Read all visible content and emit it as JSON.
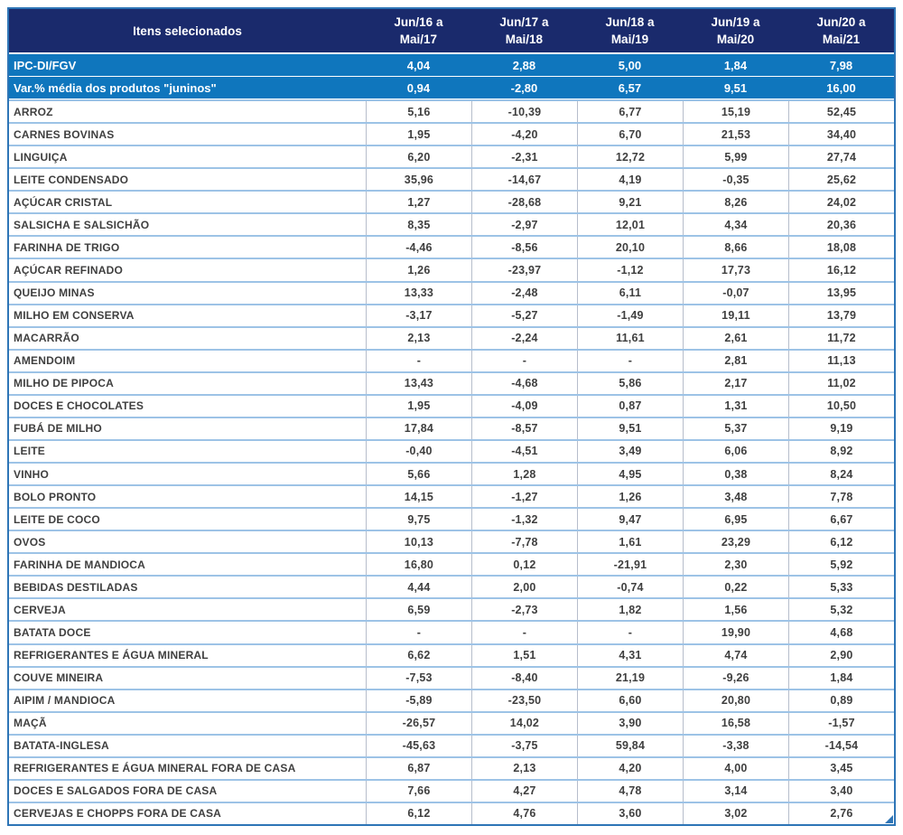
{
  "colors": {
    "header_bg": "#1A2A6C",
    "summary_bg": "#0F76BD",
    "header_text": "#FFFFFF",
    "data_text": "#3F3F3F",
    "row_separator": "#9DC3E6",
    "col_separator": "#B6BDCB",
    "outer_border": "#2E75B6"
  },
  "table": {
    "header": {
      "item_col": "Itens selecionados",
      "period_cols": [
        {
          "line1": "Jun/16 a",
          "line2": "Mai/17"
        },
        {
          "line1": "Jun/17 a",
          "line2": "Mai/18"
        },
        {
          "line1": "Jun/18 a",
          "line2": "Mai/19"
        },
        {
          "line1": "Jun/19 a",
          "line2": "Mai/20"
        },
        {
          "line1": "Jun/20 a",
          "line2": "Mai/21"
        }
      ]
    },
    "summary_rows": [
      {
        "label": "IPC-DI/FGV",
        "values": [
          "4,04",
          "2,88",
          "5,00",
          "1,84",
          "7,98"
        ]
      },
      {
        "label": "Var.% média dos produtos \"juninos\"",
        "values": [
          "0,94",
          "-2,80",
          "6,57",
          "9,51",
          "16,00"
        ]
      }
    ],
    "product_rows": [
      {
        "name": "ARROZ",
        "values": [
          "5,16",
          "-10,39",
          "6,77",
          "15,19",
          "52,45"
        ]
      },
      {
        "name": "CARNES BOVINAS",
        "values": [
          "1,95",
          "-4,20",
          "6,70",
          "21,53",
          "34,40"
        ]
      },
      {
        "name": "LINGUIÇA",
        "values": [
          "6,20",
          "-2,31",
          "12,72",
          "5,99",
          "27,74"
        ]
      },
      {
        "name": "LEITE CONDENSADO",
        "values": [
          "35,96",
          "-14,67",
          "4,19",
          "-0,35",
          "25,62"
        ]
      },
      {
        "name": "AÇÚCAR CRISTAL",
        "values": [
          "1,27",
          "-28,68",
          "9,21",
          "8,26",
          "24,02"
        ]
      },
      {
        "name": "SALSICHA E SALSICHÃO",
        "values": [
          "8,35",
          "-2,97",
          "12,01",
          "4,34",
          "20,36"
        ]
      },
      {
        "name": "FARINHA DE TRIGO",
        "values": [
          "-4,46",
          "-8,56",
          "20,10",
          "8,66",
          "18,08"
        ]
      },
      {
        "name": "AÇÚCAR REFINADO",
        "values": [
          "1,26",
          "-23,97",
          "-1,12",
          "17,73",
          "16,12"
        ]
      },
      {
        "name": "QUEIJO MINAS",
        "values": [
          "13,33",
          "-2,48",
          "6,11",
          "-0,07",
          "13,95"
        ]
      },
      {
        "name": "MILHO EM CONSERVA",
        "values": [
          "-3,17",
          "-5,27",
          "-1,49",
          "19,11",
          "13,79"
        ]
      },
      {
        "name": "MACARRÃO",
        "values": [
          "2,13",
          "-2,24",
          "11,61",
          "2,61",
          "11,72"
        ]
      },
      {
        "name": "AMENDOIM",
        "values": [
          "-",
          "-",
          "-",
          "2,81",
          "11,13"
        ]
      },
      {
        "name": "MILHO DE PIPOCA",
        "values": [
          "13,43",
          "-4,68",
          "5,86",
          "2,17",
          "11,02"
        ]
      },
      {
        "name": "DOCES E CHOCOLATES",
        "values": [
          "1,95",
          "-4,09",
          "0,87",
          "1,31",
          "10,50"
        ]
      },
      {
        "name": "FUBÁ DE MILHO",
        "values": [
          "17,84",
          "-8,57",
          "9,51",
          "5,37",
          "9,19"
        ]
      },
      {
        "name": "LEITE",
        "values": [
          "-0,40",
          "-4,51",
          "3,49",
          "6,06",
          "8,92"
        ]
      },
      {
        "name": "VINHO",
        "values": [
          "5,66",
          "1,28",
          "4,95",
          "0,38",
          "8,24"
        ]
      },
      {
        "name": "BOLO PRONTO",
        "values": [
          "14,15",
          "-1,27",
          "1,26",
          "3,48",
          "7,78"
        ]
      },
      {
        "name": "LEITE DE COCO",
        "values": [
          "9,75",
          "-1,32",
          "9,47",
          "6,95",
          "6,67"
        ]
      },
      {
        "name": "OVOS",
        "values": [
          "10,13",
          "-7,78",
          "1,61",
          "23,29",
          "6,12"
        ]
      },
      {
        "name": "FARINHA DE MANDIOCA",
        "values": [
          "16,80",
          "0,12",
          "-21,91",
          "2,30",
          "5,92"
        ]
      },
      {
        "name": "BEBIDAS DESTILADAS",
        "values": [
          "4,44",
          "2,00",
          "-0,74",
          "0,22",
          "5,33"
        ]
      },
      {
        "name": "CERVEJA",
        "values": [
          "6,59",
          "-2,73",
          "1,82",
          "1,56",
          "5,32"
        ]
      },
      {
        "name": "BATATA DOCE",
        "values": [
          "-",
          "-",
          "-",
          "19,90",
          "4,68"
        ]
      },
      {
        "name": "REFRIGERANTES E ÁGUA MINERAL",
        "values": [
          "6,62",
          "1,51",
          "4,31",
          "4,74",
          "2,90"
        ]
      },
      {
        "name": "COUVE MINEIRA",
        "values": [
          "-7,53",
          "-8,40",
          "21,19",
          "-9,26",
          "1,84"
        ]
      },
      {
        "name": "AIPIM / MANDIOCA",
        "values": [
          "-5,89",
          "-23,50",
          "6,60",
          "20,80",
          "0,89"
        ]
      },
      {
        "name": "MAÇÃ",
        "values": [
          "-26,57",
          "14,02",
          "3,90",
          "16,58",
          "-1,57"
        ]
      },
      {
        "name": "BATATA-INGLESA",
        "values": [
          "-45,63",
          "-3,75",
          "59,84",
          "-3,38",
          "-14,54"
        ]
      },
      {
        "name": "REFRIGERANTES E ÁGUA MINERAL FORA DE CASA",
        "values": [
          "6,87",
          "2,13",
          "4,20",
          "4,00",
          "3,45"
        ]
      },
      {
        "name": "DOCES E SALGADOS FORA DE CASA",
        "values": [
          "7,66",
          "4,27",
          "4,78",
          "3,14",
          "3,40"
        ]
      },
      {
        "name": "CERVEJAS E CHOPPS FORA DE CASA",
        "values": [
          "6,12",
          "4,76",
          "3,60",
          "3,02",
          "2,76"
        ]
      }
    ]
  }
}
